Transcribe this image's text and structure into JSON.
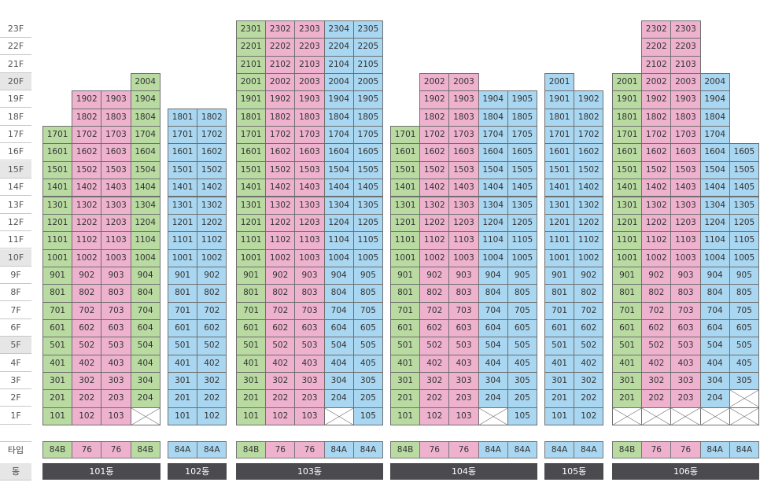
{
  "colors": {
    "green": "#b9dba2",
    "pink": "#eeb2ce",
    "blue": "#a9d6f0",
    "dark": "#4b4b4f"
  },
  "row_labels": {
    "type": "타입",
    "building": "동"
  },
  "floors": [
    "23F",
    "22F",
    "21F",
    "20F",
    "19F",
    "18F",
    "17F",
    "16F",
    "15F",
    "14F",
    "13F",
    "12F",
    "11F",
    "10F",
    "9F",
    "8F",
    "7F",
    "6F",
    "5F",
    "4F",
    "3F",
    "2F",
    "1F"
  ],
  "highlighted_floors": [
    "20F",
    "15F",
    "10F",
    "5F"
  ],
  "buildings": [
    {
      "name": "101동",
      "columns": [
        {
          "line": "01",
          "type": "84B",
          "color": "green",
          "top": 17,
          "empty": []
        },
        {
          "line": "02",
          "type": "76",
          "color": "pink",
          "top": 19,
          "empty": []
        },
        {
          "line": "03",
          "type": "76",
          "color": "pink",
          "top": 19,
          "empty": []
        },
        {
          "line": "04",
          "type": "84B",
          "color": "green",
          "top": 20,
          "empty": [
            1
          ]
        }
      ]
    },
    {
      "name": "102동",
      "columns": [
        {
          "line": "01",
          "type": "84A",
          "color": "blue",
          "top": 18,
          "empty": []
        },
        {
          "line": "02",
          "type": "84A",
          "color": "blue",
          "top": 18,
          "empty": []
        }
      ]
    },
    {
      "name": "103동",
      "columns": [
        {
          "line": "01",
          "type": "84B",
          "color": "green",
          "top": 23,
          "empty": []
        },
        {
          "line": "02",
          "type": "76",
          "color": "pink",
          "top": 23,
          "empty": []
        },
        {
          "line": "03",
          "type": "76",
          "color": "pink",
          "top": 23,
          "empty": []
        },
        {
          "line": "04",
          "type": "84A",
          "color": "blue",
          "top": 23,
          "empty": [
            1
          ]
        },
        {
          "line": "05",
          "type": "84A",
          "color": "blue",
          "top": 23,
          "empty": []
        }
      ]
    },
    {
      "name": "104동",
      "columns": [
        {
          "line": "01",
          "type": "84B",
          "color": "green",
          "top": 17,
          "empty": []
        },
        {
          "line": "02",
          "type": "76",
          "color": "pink",
          "top": 20,
          "empty": []
        },
        {
          "line": "03",
          "type": "76",
          "color": "pink",
          "top": 20,
          "empty": []
        },
        {
          "line": "04",
          "type": "84A",
          "color": "blue",
          "top": 19,
          "empty": [
            1
          ]
        },
        {
          "line": "05",
          "type": "84A",
          "color": "blue",
          "top": 19,
          "empty": []
        }
      ]
    },
    {
      "name": "105동",
      "columns": [
        {
          "line": "01",
          "type": "84A",
          "color": "blue",
          "top": 20,
          "empty": []
        },
        {
          "line": "02",
          "type": "84A",
          "color": "blue",
          "top": 19,
          "empty": []
        }
      ]
    },
    {
      "name": "106동",
      "columns": [
        {
          "line": "01",
          "type": "84B",
          "color": "green",
          "top": 20,
          "empty": [
            1
          ]
        },
        {
          "line": "02",
          "type": "76",
          "color": "pink",
          "top": 23,
          "empty": [
            1
          ]
        },
        {
          "line": "03",
          "type": "76",
          "color": "pink",
          "top": 23,
          "empty": [
            1
          ]
        },
        {
          "line": "04",
          "type": "84A",
          "color": "blue",
          "top": 20,
          "empty": [
            1
          ]
        },
        {
          "line": "05",
          "type": "84A",
          "color": "blue",
          "top": 16,
          "empty": [
            1,
            2
          ]
        }
      ]
    }
  ]
}
